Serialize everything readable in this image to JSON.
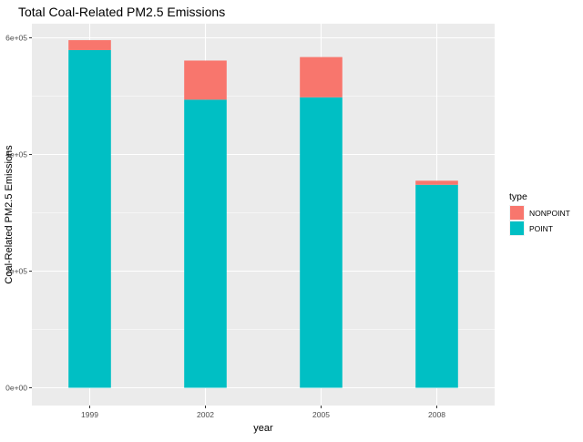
{
  "chart_data": {
    "type": "bar",
    "stacked": true,
    "title": "Total Coal-Related PM2.5 Emissions",
    "xlabel": "year",
    "ylabel": "Coal-Related PM2.5 Emissions",
    "categories": [
      "1999",
      "2002",
      "2005",
      "2008"
    ],
    "series": [
      {
        "name": "POINT",
        "color": "#00BFC4",
        "values": [
          579000,
          494000,
          498000,
          348000
        ]
      },
      {
        "name": "NONPOINT",
        "color": "#F8766D",
        "values": [
          17000,
          67000,
          69000,
          7000
        ]
      }
    ],
    "ylim": [
      0,
      620000
    ],
    "yticks": [
      0,
      200000,
      400000,
      600000
    ],
    "ytick_labels": [
      "0e+00",
      "2e+05",
      "4e+05",
      "6e+05"
    ],
    "grid": true,
    "legend": {
      "title": "type",
      "placement": "right",
      "entries": [
        {
          "name": "NONPOINT",
          "color": "#F8766D"
        },
        {
          "name": "POINT",
          "color": "#00BFC4"
        }
      ]
    },
    "panel_color": "#EBEBEB",
    "grid_color": "#FFFFFF"
  }
}
